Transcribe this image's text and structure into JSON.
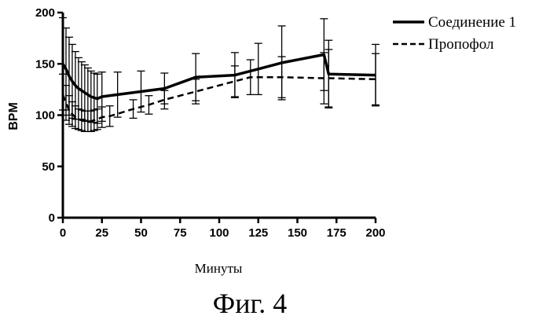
{
  "chart_data": {
    "type": "line",
    "title": "",
    "xlabel": "Минуты",
    "ylabel": "BPM",
    "xlim": [
      0,
      200
    ],
    "ylim": [
      0,
      200
    ],
    "xticks": [
      "0",
      "25",
      "50",
      "75",
      "100",
      "125",
      "150",
      "175",
      "200"
    ],
    "yticks": [
      "0",
      "50",
      "100",
      "150",
      "200"
    ],
    "grid": false,
    "legend_position": "top-right",
    "caption": "Фиг. 4",
    "series": [
      {
        "name": "Соединение 1",
        "style": "solid",
        "x": [
          0,
          2,
          4,
          6,
          8,
          10,
          12,
          14,
          16,
          18,
          20,
          22,
          25,
          35,
          50,
          65,
          85,
          110,
          125,
          140,
          167,
          170,
          200
        ],
        "y": [
          150,
          145,
          138,
          133,
          129,
          126,
          124,
          122,
          120,
          118,
          117,
          116,
          118,
          120,
          123,
          126,
          137,
          139,
          145,
          151,
          159,
          140,
          139
        ],
        "err": [
          45,
          40,
          38,
          36,
          33,
          30,
          28,
          27,
          26,
          25,
          24,
          24,
          24,
          22,
          20,
          15,
          23,
          22,
          25,
          36,
          35,
          33,
          30
        ]
      },
      {
        "name": "Пропофол",
        "style": "dashed",
        "x": [
          0,
          2,
          4,
          6,
          8,
          10,
          12,
          14,
          16,
          18,
          20,
          22,
          25,
          30,
          45,
          55,
          65,
          85,
          110,
          120,
          140,
          167,
          170,
          200
        ],
        "y": [
          120,
          112,
          105,
          101,
          98,
          96,
          95,
          94,
          94,
          94,
          95,
          96,
          98,
          99,
          106,
          110,
          115,
          123,
          133,
          137,
          137,
          136,
          136,
          135
        ],
        "err": [
          20,
          17,
          14,
          12,
          11,
          10,
          10,
          10,
          10,
          10,
          10,
          10,
          10,
          10,
          9,
          9,
          9,
          12,
          15,
          17,
          20,
          25,
          28,
          25
        ]
      }
    ]
  }
}
